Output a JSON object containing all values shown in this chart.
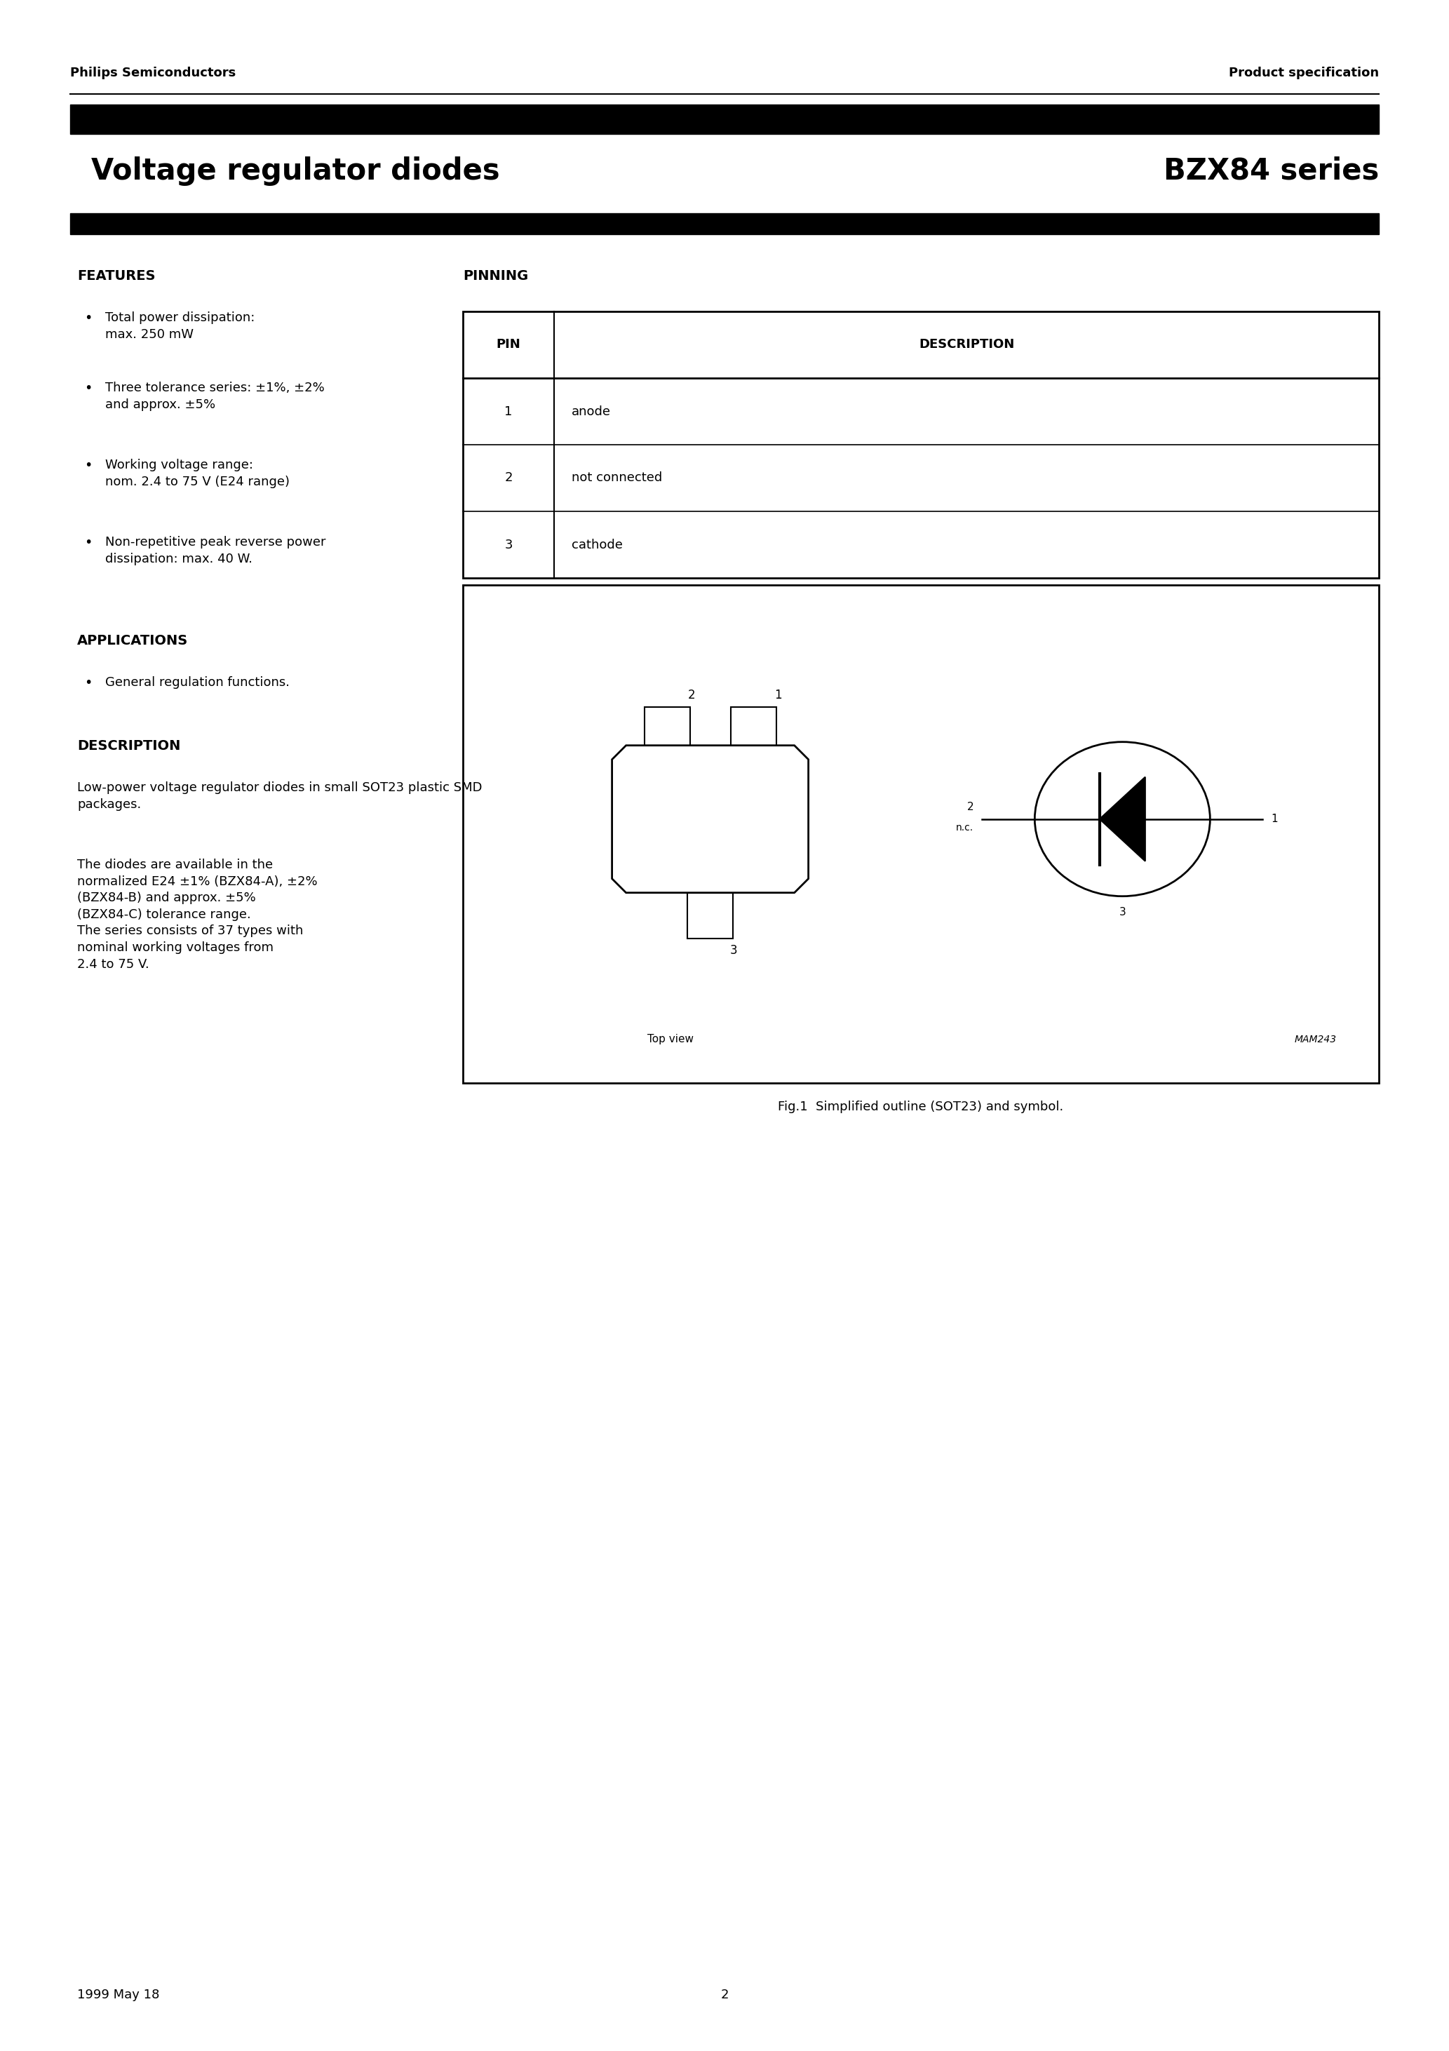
{
  "header_left": "Philips Semiconductors",
  "header_right": "Product specification",
  "title_left": "Voltage regulator diodes",
  "title_right": "BZX84 series",
  "features_title": "FEATURES",
  "features": [
    "Total power dissipation:\nmax. 250 mW",
    "Three tolerance series: ±1%, ±2%\nand approx. ±5%",
    "Working voltage range:\nnom. 2.4 to 75 V (E24 range)",
    "Non-repetitive peak reverse power\ndissipation: max. 40 W."
  ],
  "applications_title": "APPLICATIONS",
  "applications": [
    "General regulation functions."
  ],
  "description_title": "DESCRIPTION",
  "description_text": "Low-power voltage regulator diodes in small SOT23 plastic SMD\npackages.",
  "description_text2": "The diodes are available in the\nnormalized E24 ±1% (BZX84-A), ±2%\n(BZX84-B) and approx. ±5%\n(BZX84-C) tolerance range.\nThe series consists of 37 types with\nnominal working voltages from\n2.4 to 75 V.",
  "pinning_title": "PINNING",
  "pin_headers": [
    "PIN",
    "DESCRIPTION"
  ],
  "pins": [
    [
      "1",
      "anode"
    ],
    [
      "2",
      "not connected"
    ],
    [
      "3",
      "cathode"
    ]
  ],
  "fig_caption": "Fig.1  Simplified outline (SOT23) and symbol.",
  "mam_label": "MAM243",
  "top_view_label": "Top view",
  "footer_left": "1999 May 18",
  "footer_center": "2",
  "bg_color": "#ffffff",
  "text_color": "#000000"
}
